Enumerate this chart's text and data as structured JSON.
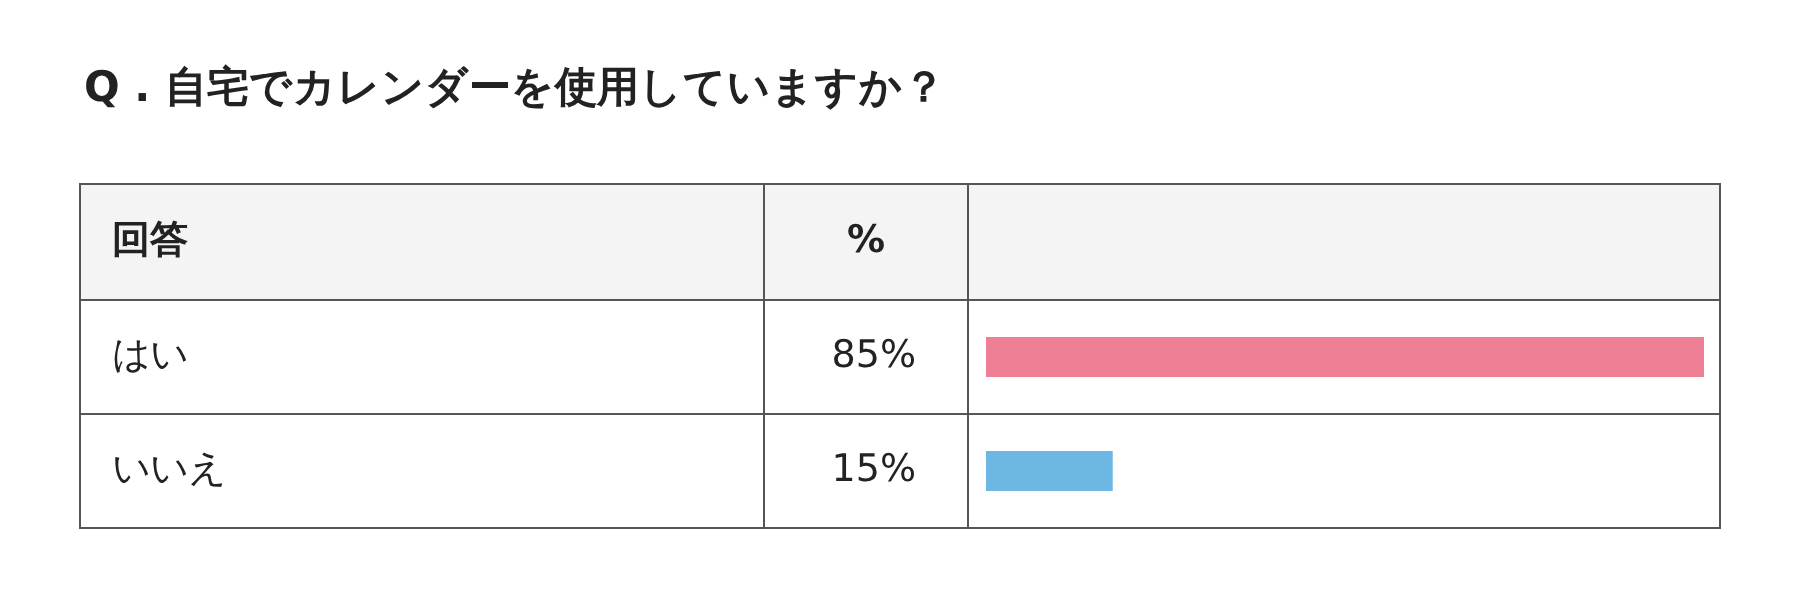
{
  "chart_data": {
    "type": "bar",
    "orientation": "horizontal",
    "title": "Q . 自宅でカレンダーを使用していますか？",
    "ylabel": "回答",
    "xlabel": "%",
    "categories": [
      "はい",
      "いいえ"
    ],
    "values": [
      85,
      15
    ],
    "colors": [
      "#ee7f95",
      "#6cb7e3"
    ],
    "value_labels": [
      "85%",
      "15%"
    ]
  }
}
